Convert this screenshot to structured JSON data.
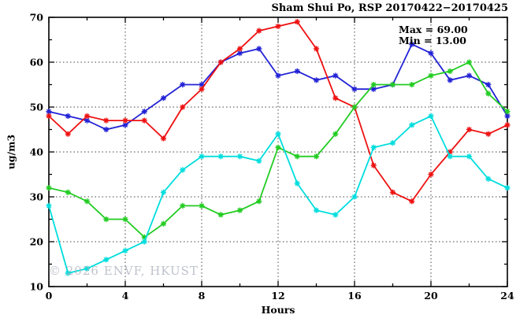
{
  "title": "Sham Shui Po, RSP 20170422−20170425",
  "annotations": {
    "max_label": "Max = 69.00",
    "min_label": "Min = 13.00"
  },
  "watermark": "© 2026 ENVF, HKUST",
  "chart_data": {
    "type": "line",
    "title": "Sham Shui Po, RSP 20170422−20170425",
    "xlabel": "Hours",
    "ylabel": "ug/m3",
    "xlim": [
      0,
      24
    ],
    "ylim": [
      10,
      70
    ],
    "x_major_ticks": [
      0,
      4,
      8,
      12,
      16,
      20,
      24
    ],
    "x_minor_tick_step": 2,
    "y_major_ticks": [
      10,
      20,
      30,
      40,
      50,
      60,
      70
    ],
    "y_minor_tick_step": 5,
    "grid": "dotted lines at major ticks, ticks on all four sides",
    "legend_position": "none",
    "marker": "asterisk",
    "max_value": 69.0,
    "min_value": 13.0,
    "x": [
      0,
      1,
      2,
      3,
      4,
      5,
      6,
      7,
      8,
      9,
      10,
      11,
      12,
      13,
      14,
      15,
      16,
      17,
      18,
      19,
      20,
      21,
      22,
      23,
      24
    ],
    "series": [
      {
        "name": "blue",
        "color": "#2222d6",
        "values": [
          49,
          48,
          47,
          45,
          46,
          49,
          52,
          55,
          55,
          60,
          62,
          63,
          57,
          58,
          56,
          57,
          54,
          54,
          55,
          64,
          62,
          56,
          57,
          55,
          48
        ]
      },
      {
        "name": "red",
        "color": "#ee1111",
        "values": [
          48,
          44,
          48,
          47,
          47,
          47,
          43,
          50,
          54,
          60,
          63,
          67,
          68,
          69,
          63,
          52,
          50,
          37,
          31,
          29,
          35,
          40,
          45,
          44,
          46
        ]
      },
      {
        "name": "green",
        "color": "#22cc22",
        "values": [
          32,
          31,
          29,
          25,
          25,
          21,
          24,
          28,
          28,
          26,
          27,
          29,
          41,
          39,
          39,
          44,
          50,
          55,
          55,
          55,
          57,
          58,
          60,
          53,
          49
        ]
      },
      {
        "name": "cyan",
        "color": "#00dddd",
        "values": [
          28,
          13,
          14,
          16,
          18,
          20,
          31,
          36,
          39,
          39,
          39,
          38,
          44,
          33,
          27,
          26,
          30,
          41,
          42,
          46,
          48,
          39,
          39,
          34,
          32
        ]
      }
    ]
  }
}
